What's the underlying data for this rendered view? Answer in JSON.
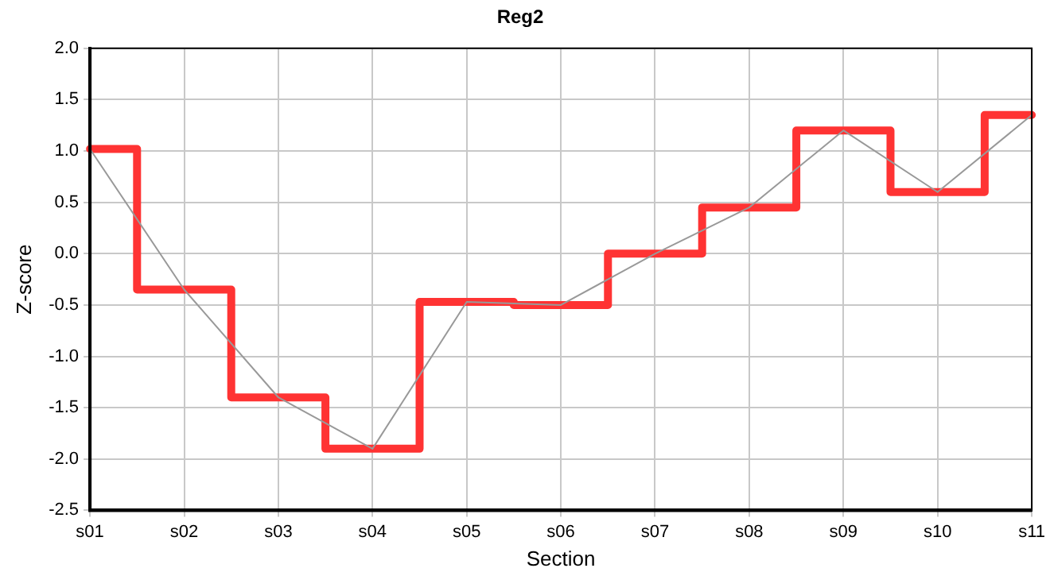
{
  "chart_data": {
    "type": "line",
    "title": "Reg2",
    "xlabel": "Section",
    "ylabel": "Z-score",
    "categories": [
      "s01",
      "s02",
      "s03",
      "s04",
      "s05",
      "s06",
      "s07",
      "s08",
      "s09",
      "s10",
      "s11"
    ],
    "series": [
      {
        "type": "line",
        "color": "#999999",
        "values": [
          1.02,
          -0.35,
          -1.4,
          -1.9,
          -0.47,
          -0.5,
          0.0,
          0.45,
          1.2,
          0.6,
          1.35
        ]
      },
      {
        "type": "step",
        "color": "#ff3333",
        "values": [
          1.02,
          -0.35,
          -1.4,
          -1.9,
          -0.47,
          -0.5,
          0.0,
          0.45,
          1.2,
          0.6,
          1.35
        ]
      }
    ],
    "ylim": [
      -2.5,
      2.0
    ],
    "yticks": [
      -2.5,
      {
        "value": -2,
        "label": "-2.0"
      },
      -1.5,
      {
        "value": -1,
        "label": "-1.0"
      },
      -0.5,
      {
        "value": 0,
        "label": "0.0"
      },
      0.5,
      {
        "value": 1,
        "label": "1.0"
      },
      1.5,
      {
        "value": 2,
        "label": "2.0"
      }
    ],
    "grid": true,
    "legend": false,
    "marker": "none"
  }
}
